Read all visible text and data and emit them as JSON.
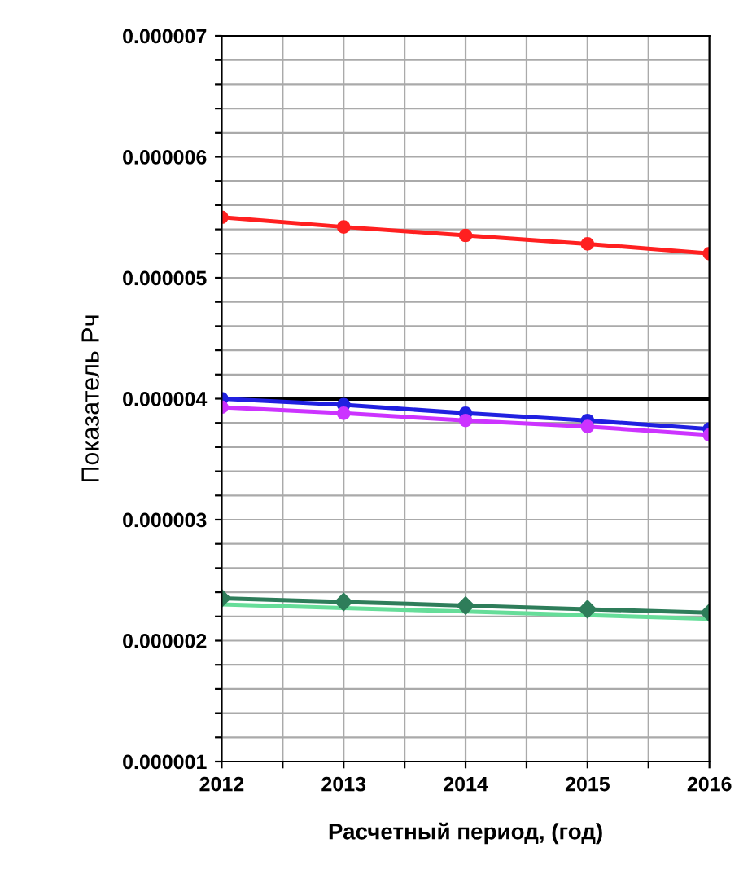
{
  "chart_data": {
    "type": "line",
    "xlabel": "Расчетный период, (год)",
    "ylabel": "Показатель Рч",
    "x": [
      2012,
      2013,
      2014,
      2015,
      2016
    ],
    "xlim": [
      2012,
      2016
    ],
    "xticks": [
      2012,
      {
        "value": 2012.5,
        "label": null
      },
      2013,
      {
        "value": 2013.5,
        "label": null
      },
      2014,
      {
        "value": 2014.5,
        "label": null
      },
      2015,
      {
        "value": 2015.5,
        "label": null
      },
      2016
    ],
    "ylim": [
      1e-06,
      7e-06
    ],
    "yticks": [
      {
        "value": 1e-06,
        "label": "0.000001"
      },
      {
        "value": 1.2e-06,
        "label": null
      },
      {
        "value": 1.4e-06,
        "label": null
      },
      {
        "value": 1.6e-06,
        "label": null
      },
      {
        "value": 1.8e-06,
        "label": null
      },
      {
        "value": 2e-06,
        "label": "0.000002"
      },
      {
        "value": 2.2e-06,
        "label": null
      },
      {
        "value": 2.4e-06,
        "label": null
      },
      {
        "value": 2.6e-06,
        "label": null
      },
      {
        "value": 2.8e-06,
        "label": null
      },
      {
        "value": 3e-06,
        "label": "0.000003"
      },
      {
        "value": 3.2e-06,
        "label": null
      },
      {
        "value": 3.4e-06,
        "label": null
      },
      {
        "value": 3.6e-06,
        "label": null
      },
      {
        "value": 3.8e-06,
        "label": null
      },
      {
        "value": 4e-06,
        "label": "0.000004"
      },
      {
        "value": 4.2e-06,
        "label": null
      },
      {
        "value": 4.4e-06,
        "label": null
      },
      {
        "value": 4.6e-06,
        "label": null
      },
      {
        "value": 4.8e-06,
        "label": null
      },
      {
        "value": 5e-06,
        "label": "0.000005"
      },
      {
        "value": 5.2e-06,
        "label": null
      },
      {
        "value": 5.4e-06,
        "label": null
      },
      {
        "value": 5.6e-06,
        "label": null
      },
      {
        "value": 5.8e-06,
        "label": null
      },
      {
        "value": 6e-06,
        "label": "0.000006"
      },
      {
        "value": 6.2e-06,
        "label": null
      },
      {
        "value": 6.4e-06,
        "label": null
      },
      {
        "value": 6.6e-06,
        "label": null
      },
      {
        "value": 6.8e-06,
        "label": null
      },
      {
        "value": 7e-06,
        "label": "0.000007"
      }
    ],
    "grid": true,
    "legend": false,
    "series": [
      {
        "color": "#000000",
        "marker": "none",
        "values": [
          4e-06,
          4e-06,
          4e-06,
          4e-06,
          4e-06
        ]
      },
      {
        "color": "#ff2020",
        "marker": "circle",
        "values": [
          5.5e-06,
          5.42e-06,
          5.35e-06,
          5.28e-06,
          5.2e-06
        ]
      },
      {
        "color": "#2020e0",
        "marker": "circle",
        "values": [
          4e-06,
          3.95e-06,
          3.88e-06,
          3.82e-06,
          3.75e-06
        ]
      },
      {
        "color": "#cc33ff",
        "marker": "circle",
        "values": [
          3.93e-06,
          3.88e-06,
          3.82e-06,
          3.77e-06,
          3.7e-06
        ]
      },
      {
        "color": "#66dd99",
        "marker": "none",
        "values": [
          2.3e-06,
          2.27e-06,
          2.24e-06,
          2.21e-06,
          2.18e-06
        ]
      },
      {
        "color": "#2e7d5a",
        "marker": "diamond",
        "values": [
          2.35e-06,
          2.32e-06,
          2.29e-06,
          2.26e-06,
          2.23e-06
        ]
      }
    ]
  }
}
